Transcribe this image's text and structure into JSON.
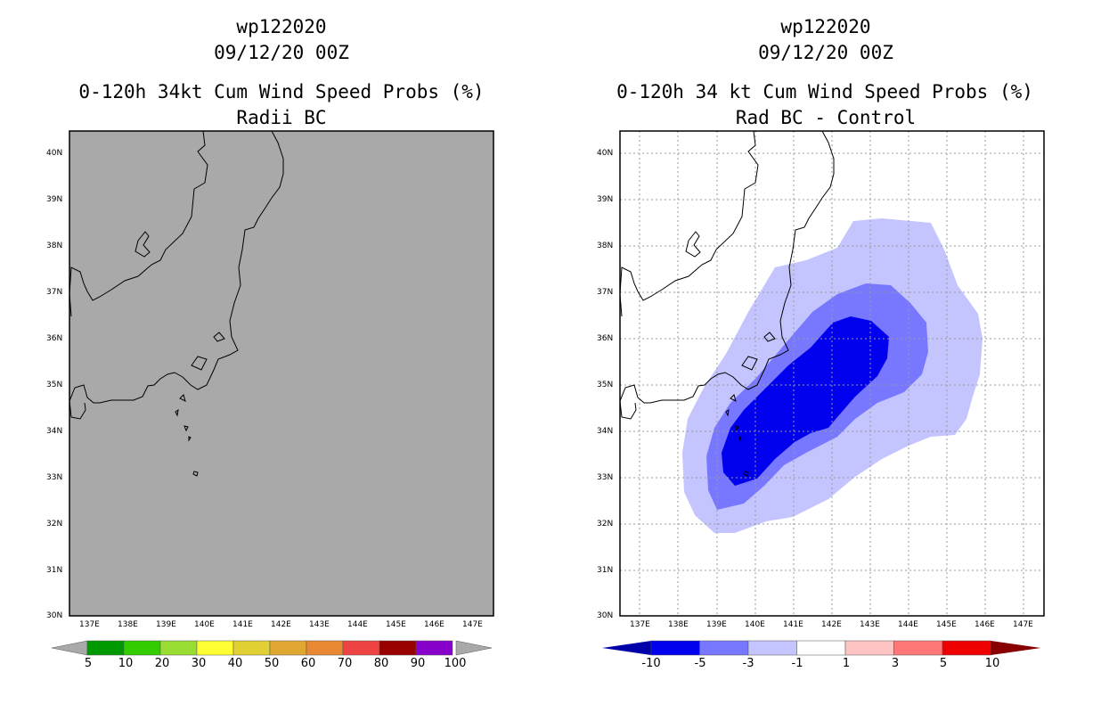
{
  "left_panel": {
    "title_line1": "wp122020",
    "title_line2": "09/12/20 00Z",
    "title_line3": "0-120h 34kt Cum Wind Speed Probs (%)",
    "title_line4": "Radii BC",
    "lat_labels": [
      "40N",
      "39N",
      "38N",
      "37N",
      "36N",
      "35N",
      "34N",
      "33N",
      "32N",
      "31N",
      "30N"
    ],
    "lon_labels": [
      "137E",
      "138E",
      "139E",
      "140E",
      "141E",
      "142E",
      "143E",
      "144E",
      "145E",
      "146E",
      "147E"
    ],
    "colorbar_labels": [
      "5",
      "10",
      "20",
      "30",
      "40",
      "50",
      "60",
      "70",
      "80",
      "90",
      "100"
    ],
    "colorbar_colors": [
      "#009900",
      "#33cc00",
      "#99dd33",
      "#ffff33",
      "#e0d033",
      "#e0a833",
      "#e88833",
      "#ee4444",
      "#990000",
      "#8800cc"
    ]
  },
  "right_panel": {
    "title_line1": "wp122020",
    "title_line2": "09/12/20 00Z",
    "title_line3": "0-120h 34 kt Cum Wind Speed Probs (%)",
    "title_line4": "Rad BC - Control",
    "lat_labels": [
      "40N",
      "39N",
      "38N",
      "37N",
      "36N",
      "35N",
      "34N",
      "33N",
      "32N",
      "31N",
      "30N"
    ],
    "lon_labels": [
      "137E",
      "138E",
      "139E",
      "140E",
      "141E",
      "142E",
      "143E",
      "144E",
      "145E",
      "146E",
      "147E"
    ],
    "colorbar_labels": [
      "-10",
      "-5",
      "-3",
      "-1",
      "1",
      "3",
      "5",
      "10"
    ],
    "colorbar_colors": [
      "#0000aa",
      "#0000ee",
      "#7777ff",
      "#c4c4ff",
      "#ffffff",
      "#ffc4c4",
      "#ff7777",
      "#ee0000",
      "#880000"
    ]
  },
  "colors": {
    "left_background": "#a9a9a9",
    "contour_light": "#c4c4ff",
    "contour_medium": "#7777ff",
    "contour_dark": "#0000ee"
  }
}
